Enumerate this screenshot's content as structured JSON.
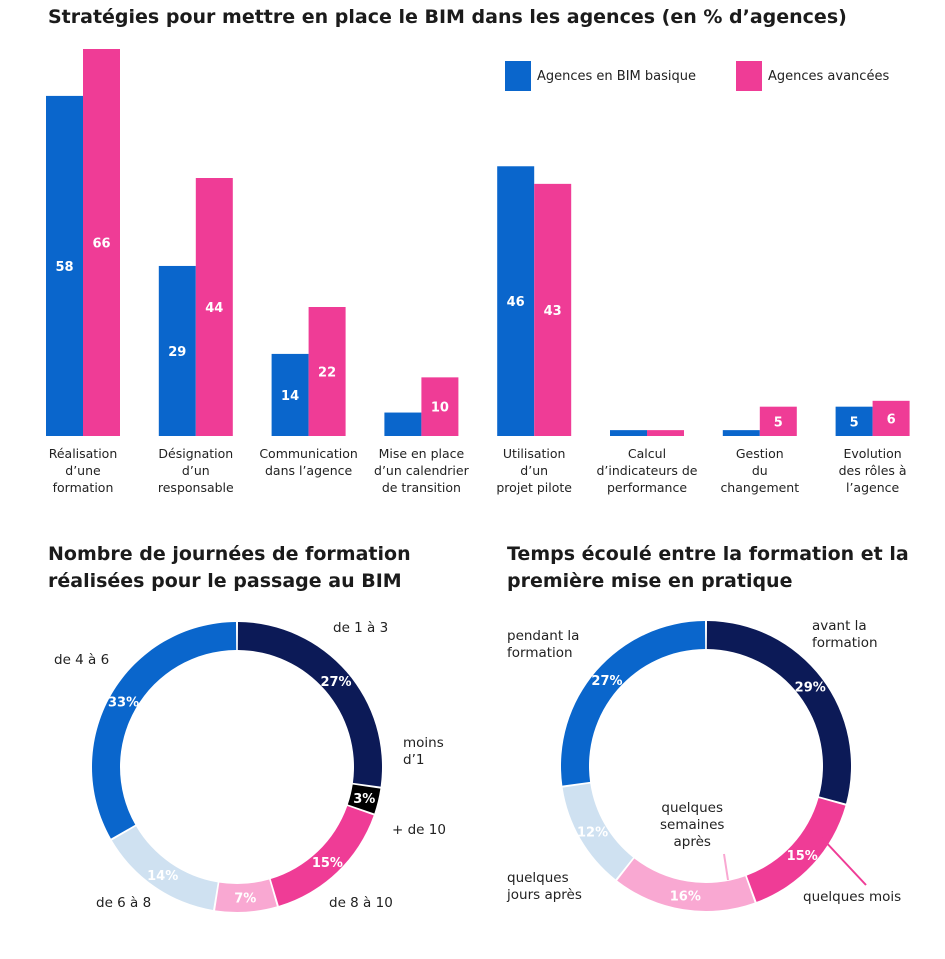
{
  "chart_data": [
    {
      "type": "bar",
      "title": "Stratégies pour mettre en place le BIM dans les agences (en % d’agences)",
      "categories": [
        [
          "Réalisation",
          "d’une",
          "formation"
        ],
        [
          "Désignation",
          "d’un",
          "responsable"
        ],
        [
          "Communication",
          "dans l’agence"
        ],
        [
          "Mise en place",
          "d’un calendrier",
          "de transition"
        ],
        [
          "Utilisation",
          "d’un",
          "projet pilote"
        ],
        [
          "Calcul",
          "d’indicateurs de",
          "performance"
        ],
        [
          "Gestion",
          "du",
          "changement"
        ],
        [
          "Evolution",
          "des rôles à",
          "l’agence"
        ]
      ],
      "series": [
        {
          "name": "Agences en BIM basique",
          "color": "#0a66cc",
          "values": [
            58,
            29,
            14,
            4,
            46,
            1,
            1,
            5
          ],
          "labels": [
            "58",
            "29",
            "14",
            "",
            "46",
            "",
            "",
            "5"
          ]
        },
        {
          "name": "Agences avancées",
          "color": "#ef3c96",
          "values": [
            66,
            44,
            22,
            10,
            43,
            1,
            5,
            6
          ],
          "labels": [
            "66",
            "44",
            "22",
            "10",
            "43",
            "",
            "5",
            "6"
          ]
        }
      ],
      "ylim": [
        0,
        66
      ],
      "grid": false,
      "legend": "top-right"
    },
    {
      "type": "pie",
      "title": "Nombre de journées de formation réalisées pour le passage au BIM",
      "slices": [
        {
          "label": [
            "de 1 à 3"
          ],
          "value": 27,
          "pct": "27%",
          "color": "#0c1a57",
          "text": "#ffffff"
        },
        {
          "label": [
            "moins",
            "d’1"
          ],
          "value": 3,
          "pct": "3%",
          "color": "#000000",
          "text": "#ffffff"
        },
        {
          "label": [
            "+ de 10"
          ],
          "value": 15,
          "pct": "15%",
          "color": "#ef3c96",
          "text": "#ffffff"
        },
        {
          "label": [
            "de 8 à 10"
          ],
          "value": 7,
          "pct": "7%",
          "color": "#f9a8d2",
          "text": "#ffffff"
        },
        {
          "label": [
            "de 6 à 8"
          ],
          "value": 14,
          "pct": "14%",
          "color": "#cfe1f1",
          "text": "#ffffff"
        },
        {
          "label": [
            "de 4 à 6"
          ],
          "value": 33,
          "pct": "33%",
          "color": "#0a66cc",
          "text": "#ffffff"
        }
      ]
    },
    {
      "type": "pie",
      "title": "Temps écoulé entre la formation et la première mise en pratique",
      "slices": [
        {
          "label": [
            "avant la",
            "formation"
          ],
          "value": 29,
          "pct": "29%",
          "color": "#0c1a57",
          "text": "#ffffff"
        },
        {
          "label": [
            "quelques mois"
          ],
          "value": 15,
          "pct": "15%",
          "color": "#ef3c96",
          "text": "#ffffff"
        },
        {
          "label": [
            "quelques",
            "semaines",
            "après"
          ],
          "value": 16,
          "pct": "16%",
          "color": "#f9a8d2",
          "text": "#ffffff"
        },
        {
          "label": [
            "quelques",
            "jours après"
          ],
          "value": 12,
          "pct": "12%",
          "color": "#cfe1f1",
          "text": "#ffffff"
        },
        {
          "label": [
            "pendant la",
            "formation"
          ],
          "value": 27,
          "pct": "27%",
          "color": "#0a66cc",
          "text": "#ffffff"
        }
      ]
    }
  ]
}
